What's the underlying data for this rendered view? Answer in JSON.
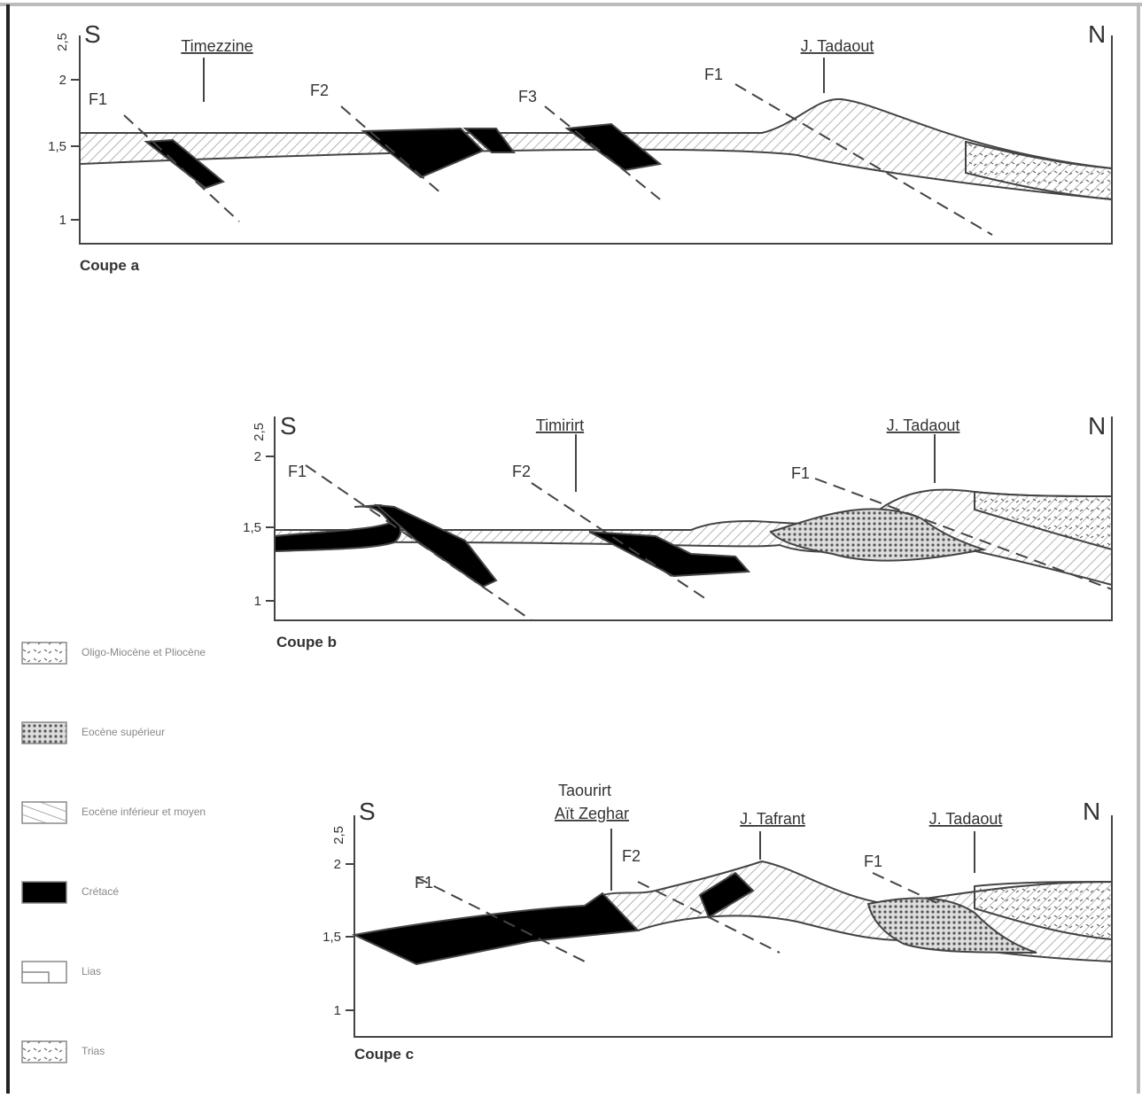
{
  "panels": [
    {
      "coupe": "Coupe a",
      "south": "S",
      "north": "N",
      "axis": [
        "2,5",
        "2",
        "1,5",
        "1"
      ],
      "places": [
        "Timezzine",
        "J. Tadaout"
      ],
      "faults": [
        "F1",
        "F2",
        "F3",
        "F1"
      ]
    },
    {
      "coupe": "Coupe b",
      "south": "S",
      "north": "N",
      "axis": [
        "2,5",
        "2",
        "1,5",
        "1"
      ],
      "places": [
        "Timirirt",
        "J. Tadaout"
      ],
      "faults": [
        "F1",
        "F2",
        "F1"
      ]
    },
    {
      "coupe": "Coupe c",
      "south": "S",
      "north": "N",
      "axis": [
        "2,5",
        "2",
        "1,5",
        "1"
      ],
      "places": [
        "Taourirt",
        "Aït Zeghar",
        "J. Tafrant",
        "J. Tadaout"
      ],
      "faults": [
        "F1",
        "F2",
        "F1"
      ]
    }
  ],
  "legend": [
    "Oligo-Miocène et Pliocène",
    "Eocène supérieur",
    "Eocène inférieur et moyen",
    "Crétacé",
    "Lias",
    "Trias"
  ]
}
